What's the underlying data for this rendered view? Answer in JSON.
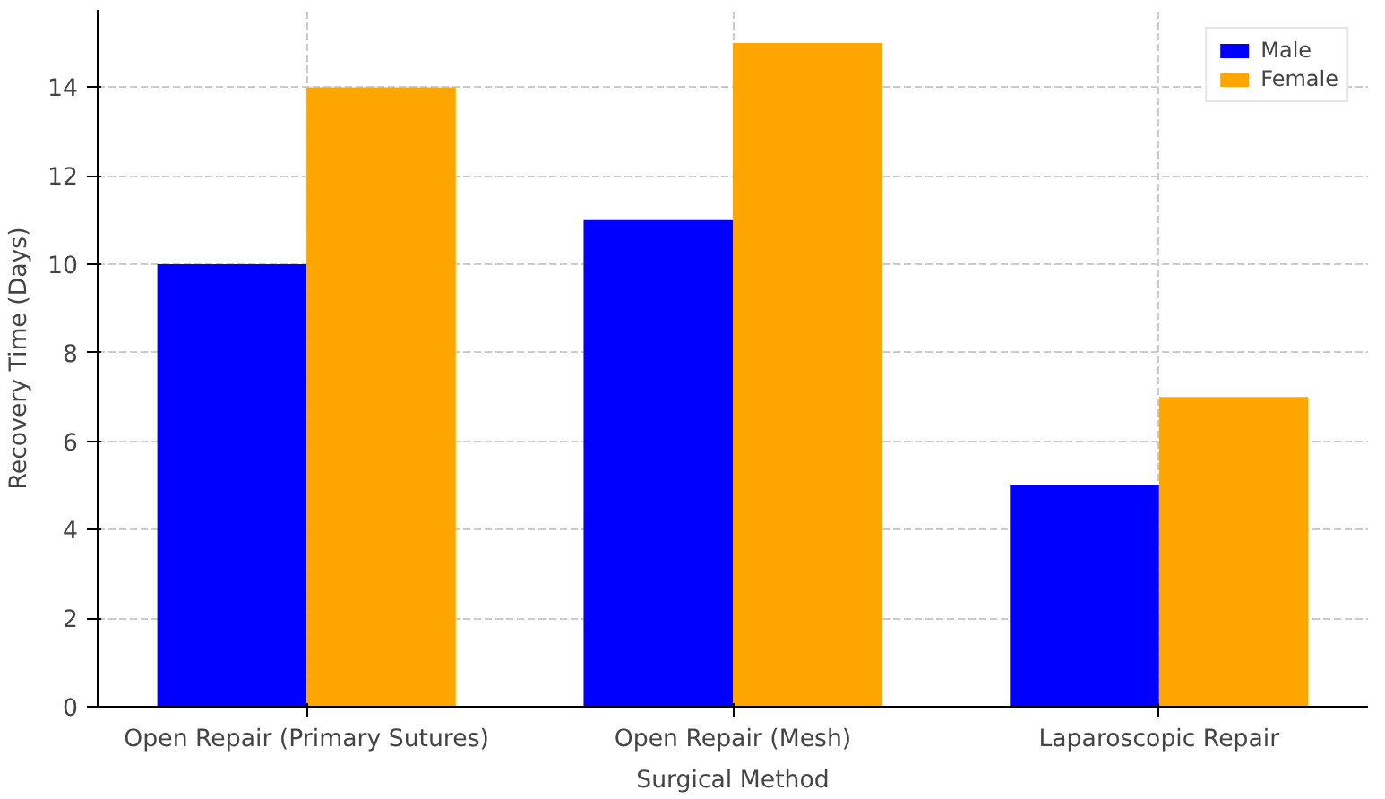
{
  "chart_data": {
    "type": "bar",
    "xlabel": "Surgical Method",
    "ylabel": "Recovery Time (Days)",
    "categories": [
      "Open Repair (Primary Sutures)",
      "Open Repair (Mesh)",
      "Laparoscopic Repair"
    ],
    "series": [
      {
        "name": "Male",
        "color": "#0000ff",
        "values": [
          10,
          11,
          5
        ]
      },
      {
        "name": "Female",
        "color": "#ffa500",
        "values": [
          14,
          15,
          7
        ]
      }
    ],
    "ylim": [
      0,
      15.75
    ],
    "yticks": [
      0,
      2,
      4,
      6,
      8,
      10,
      12,
      14
    ],
    "grid": true,
    "legend": "top right"
  }
}
